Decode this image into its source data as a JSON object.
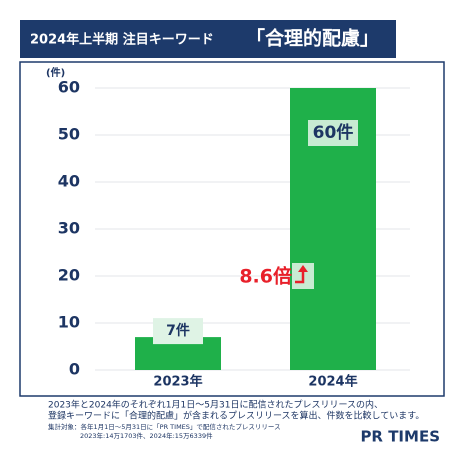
{
  "chart_data": {
    "type": "bar",
    "title": "2024年上半期 注目キーワード",
    "title_keyword": "「合理的配慮」",
    "y_label": "(件)",
    "categories": [
      "2023年",
      "2024年"
    ],
    "values": [
      7,
      60
    ],
    "value_labels": [
      "7件",
      "60件"
    ],
    "color": "#1fb04a",
    "ylim": [
      0,
      60
    ],
    "yticks": [
      0,
      10,
      20,
      30,
      40,
      50,
      60
    ],
    "grid": true,
    "annotation": "8.6倍",
    "notes": [
      "2023年と2024年のそれぞれ1月1日～5月31日に配信されたプレスリリースの内、",
      "登録キーワードに「合理的配慮」が含まれるプレスリリースを算出、件数を比較しています。",
      "集計対象：各年1月1日～5月31日に「PR TIMES」で配信されたプレスリリース",
      "2023年:14万1703件、2024年:15万6339件"
    ],
    "brand": "PR TIMES"
  }
}
